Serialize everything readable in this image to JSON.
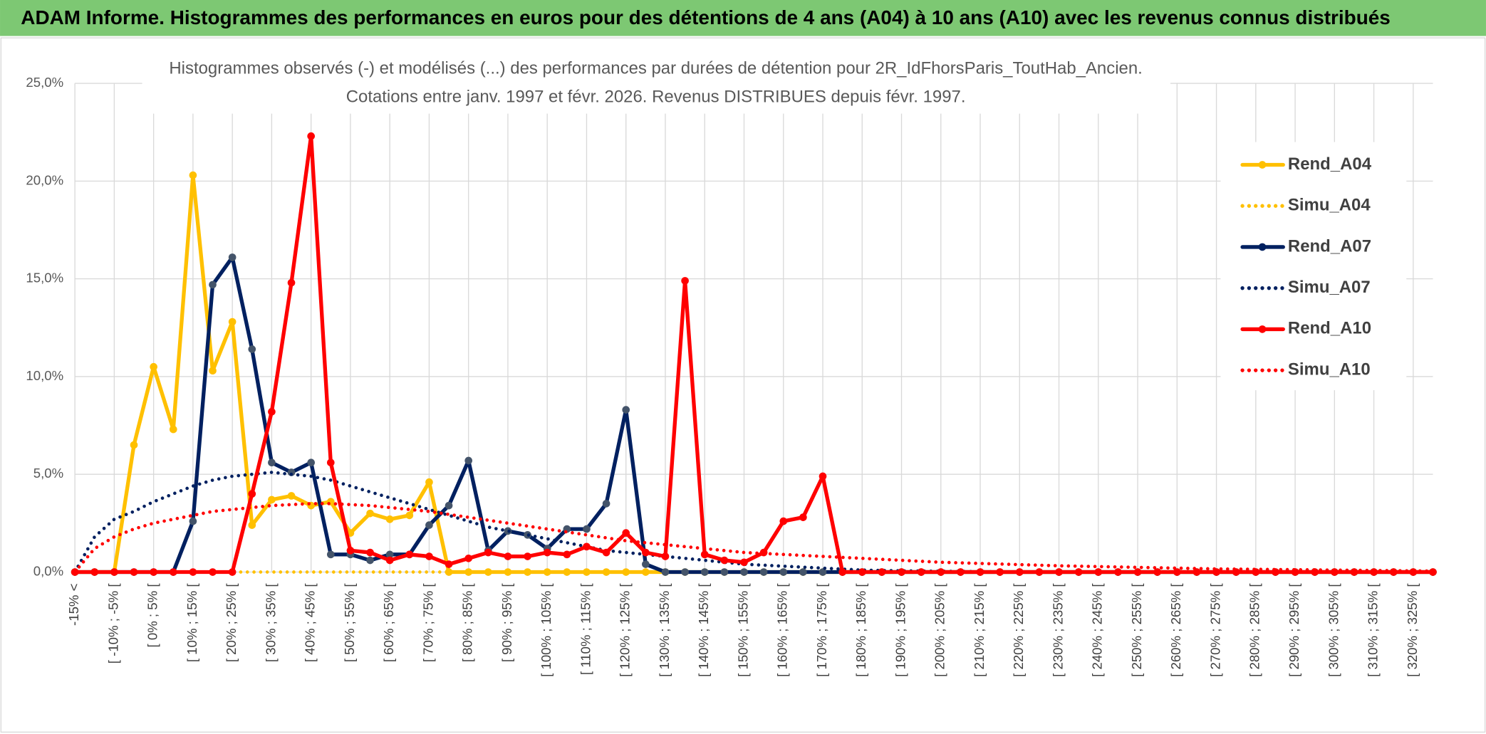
{
  "chart_data": {
    "type": "line",
    "title": "ADAM Informe. Histogrammes des performances en euros pour des détentions de 4 ans (A04) à 10 ans (A10) avec les revenus connus distribués",
    "subtitle": [
      "Histogrammes observés (-) et modélisés (...) des performances par durées de détention pour 2R_IdFhorsParis_ToutHab_Ancien.",
      "Cotations entre janv. 1997 et févr. 2026. Revenus DISTRIBUES depuis févr. 1997."
    ],
    "categories": [
      "-15% <",
      null,
      "[ -10% ; -5% [",
      null,
      "[ 0% ; 5% [",
      null,
      "[ 10% ; 15% [",
      null,
      "[ 20% ; 25% [",
      null,
      "[ 30% ; 35% [",
      null,
      "[ 40% ; 45% [",
      null,
      "[ 50% ; 55% [",
      null,
      "[ 60% ; 65% [",
      null,
      "[ 70% ; 75% [",
      null,
      "[ 80% ; 85% [",
      null,
      "[ 90% ; 95% [",
      null,
      "[ 100% ; 105% [",
      null,
      "[ 110% ; 115% [",
      null,
      "[ 120% ; 125% [",
      null,
      "[ 130% ; 135% [",
      null,
      "[ 140% ; 145% [",
      null,
      "[ 150% ; 155% [",
      null,
      "[ 160% ; 165% [",
      null,
      "[ 170% ; 175% [",
      null,
      "[ 180% ; 185% [",
      null,
      "[ 190% ; 195% [",
      null,
      "[ 200% ; 205% [",
      null,
      "[ 210% ; 215% [",
      null,
      "[ 220% ; 225% [",
      null,
      "[ 230% ; 235% [",
      null,
      "[ 240% ; 245% [",
      null,
      "[ 250% ; 255% [",
      null,
      "[ 260% ; 265% [",
      null,
      "[ 270% ; 275% [",
      null,
      "[ 280% ; 285% [",
      null,
      "[ 290% ; 295% [",
      null,
      "[ 300% ; 305% [",
      null,
      "[ 310% ; 315% [",
      null,
      "[ 320% ; 325% [",
      null
    ],
    "series": [
      {
        "name": "Rend_A04",
        "color": "#ffc000",
        "style": "solid",
        "values": [
          0,
          0,
          0,
          6.5,
          10.5,
          7.3,
          20.3,
          10.3,
          12.8,
          2.4,
          3.7,
          3.9,
          3.4,
          3.6,
          2.0,
          3.0,
          2.7,
          2.9,
          4.6,
          0,
          0,
          0,
          0,
          0,
          0,
          0,
          0,
          0,
          0,
          0,
          0,
          0,
          0,
          0,
          0,
          0,
          0,
          0,
          0,
          0,
          0,
          0,
          0,
          0,
          0,
          0,
          0,
          0,
          0,
          0,
          0,
          0,
          0,
          0,
          0,
          0,
          0,
          0,
          0,
          0,
          0,
          0,
          0,
          0,
          0,
          0,
          0,
          0,
          0,
          0
        ]
      },
      {
        "name": "Simu_A04",
        "color": "#ffc000",
        "style": "dotted",
        "values": [
          0,
          0,
          0,
          0,
          0,
          0,
          0,
          0,
          0,
          0,
          0,
          0,
          0,
          0,
          0,
          0,
          0,
          0,
          0,
          0,
          0,
          0,
          0,
          0,
          0,
          0,
          0,
          0,
          0,
          0,
          0,
          0,
          0,
          0,
          0,
          0,
          0,
          0,
          0,
          0,
          0,
          0,
          0,
          0,
          0,
          0,
          0,
          0,
          0,
          0,
          0,
          0,
          0,
          0,
          0,
          0,
          0,
          0,
          0,
          0,
          0,
          0,
          0,
          0,
          0,
          0,
          0,
          0,
          0,
          0
        ]
      },
      {
        "name": "Rend_A07",
        "color": "#002060",
        "style": "solid",
        "values": [
          0,
          0,
          0,
          0,
          0,
          0,
          2.6,
          14.7,
          16.1,
          11.4,
          5.6,
          5.1,
          5.6,
          0.9,
          0.9,
          0.6,
          0.9,
          0.9,
          2.4,
          3.4,
          5.7,
          1.1,
          2.1,
          1.9,
          1.2,
          2.2,
          2.2,
          3.5,
          8.3,
          0.4,
          0,
          0,
          0,
          0,
          0,
          0,
          0,
          0,
          0,
          0,
          0,
          0,
          0,
          0,
          0,
          0,
          0,
          0,
          0,
          0,
          0,
          0,
          0,
          0,
          0,
          0,
          0,
          0,
          0,
          0,
          0,
          0,
          0,
          0,
          0,
          0,
          0,
          0,
          0,
          0
        ]
      },
      {
        "name": "Simu_A07",
        "color": "#002060",
        "style": "dotted",
        "values": [
          0,
          1.8,
          2.7,
          3.1,
          3.6,
          4.0,
          4.4,
          4.7,
          4.9,
          5.0,
          5.1,
          5.0,
          4.9,
          4.7,
          4.4,
          4.1,
          3.8,
          3.5,
          3.2,
          2.9,
          2.6,
          2.3,
          2.1,
          1.9,
          1.7,
          1.5,
          1.3,
          1.1,
          1.0,
          0.9,
          0.8,
          0.7,
          0.6,
          0.5,
          0.4,
          0.35,
          0.3,
          0.25,
          0.2,
          0.15,
          0.1,
          0.08,
          0.06,
          0.05,
          0.04,
          0.03,
          0.02,
          0.01,
          0,
          0,
          0,
          0,
          0,
          0,
          0,
          0,
          0,
          0,
          0,
          0,
          0,
          0,
          0,
          0,
          0,
          0,
          0,
          0,
          0,
          0
        ]
      },
      {
        "name": "Rend_A10",
        "color": "#ff0000",
        "style": "solid",
        "values": [
          0,
          0,
          0,
          0,
          0,
          0,
          0,
          0,
          0,
          4.0,
          8.2,
          14.8,
          22.3,
          5.6,
          1.1,
          1.0,
          0.6,
          0.9,
          0.8,
          0.4,
          0.7,
          1.0,
          0.8,
          0.8,
          1.0,
          0.9,
          1.3,
          1.0,
          2.0,
          1.0,
          0.8,
          14.9,
          0.9,
          0.6,
          0.5,
          1.0,
          2.6,
          2.8,
          4.9,
          0,
          0,
          0,
          0,
          0,
          0,
          0,
          0,
          0,
          0,
          0,
          0,
          0,
          0,
          0,
          0,
          0,
          0,
          0,
          0,
          0,
          0,
          0,
          0,
          0,
          0,
          0,
          0,
          0,
          0,
          0
        ]
      },
      {
        "name": "Simu_A10",
        "color": "#ff0000",
        "style": "dotted",
        "values": [
          0,
          1.2,
          1.8,
          2.2,
          2.5,
          2.7,
          2.9,
          3.1,
          3.2,
          3.3,
          3.4,
          3.45,
          3.5,
          3.5,
          3.45,
          3.4,
          3.3,
          3.2,
          3.1,
          2.95,
          2.8,
          2.65,
          2.5,
          2.35,
          2.2,
          2.05,
          1.9,
          1.75,
          1.6,
          1.5,
          1.4,
          1.3,
          1.2,
          1.1,
          1.0,
          0.95,
          0.9,
          0.85,
          0.8,
          0.75,
          0.7,
          0.65,
          0.6,
          0.55,
          0.5,
          0.47,
          0.44,
          0.41,
          0.38,
          0.35,
          0.32,
          0.3,
          0.28,
          0.26,
          0.24,
          0.22,
          0.2,
          0.18,
          0.16,
          0.15,
          0.14,
          0.13,
          0.12,
          0.11,
          0.1,
          0.09,
          0.08,
          0.07,
          0.06,
          0.05
        ]
      }
    ],
    "ylim": [
      0,
      25
    ],
    "yticks": [
      {
        "value": 0,
        "label": "0,0%"
      },
      {
        "value": 5,
        "label": "5,0%"
      },
      {
        "value": 10,
        "label": "10,0%"
      },
      {
        "value": 15,
        "label": "15,0%"
      },
      {
        "value": 20,
        "label": "20,0%"
      },
      {
        "value": 25,
        "label": "25,0%"
      }
    ],
    "grid": true,
    "legend": "right"
  }
}
